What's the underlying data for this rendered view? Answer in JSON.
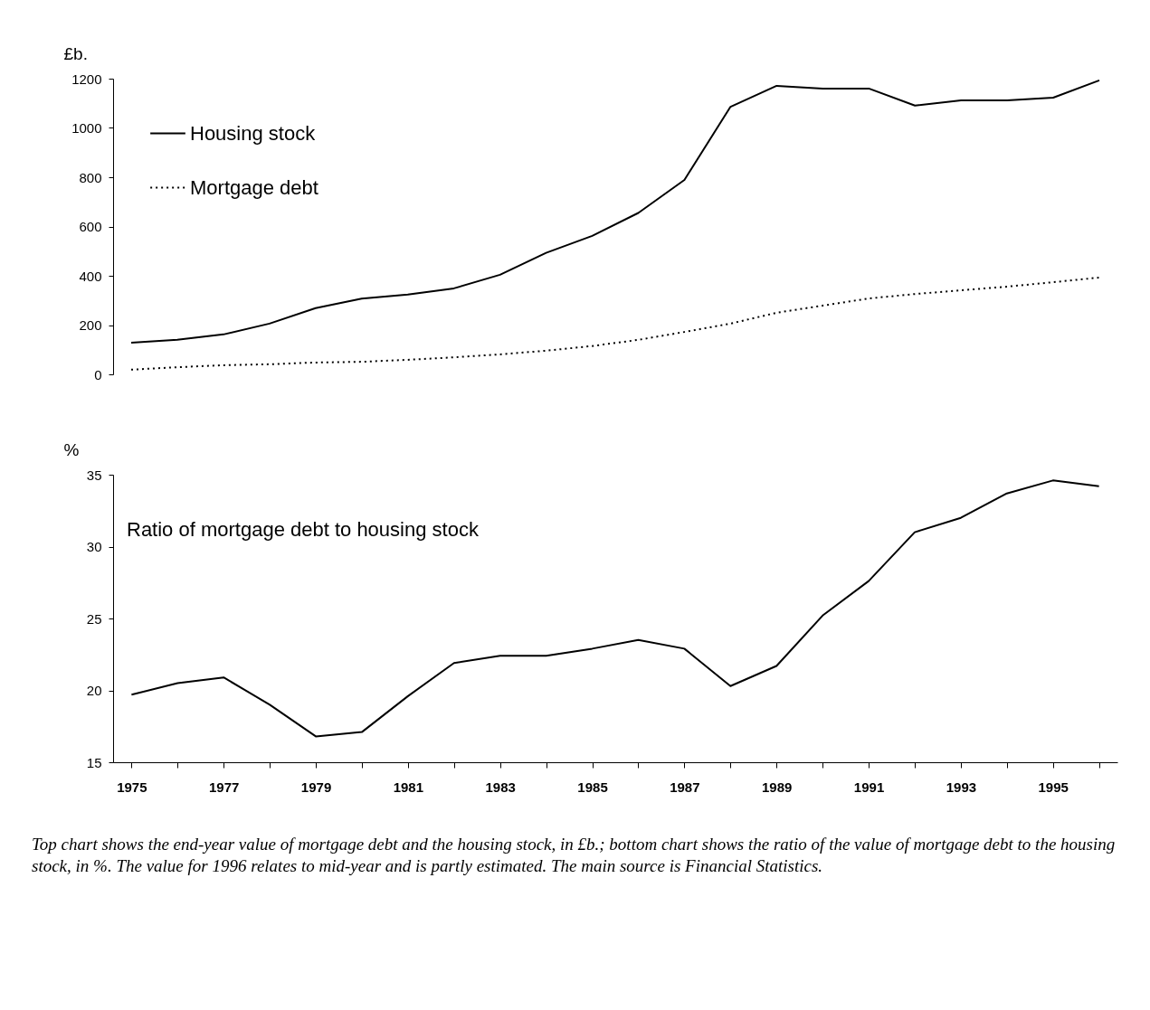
{
  "chart_data": [
    {
      "type": "line",
      "ylabel": "£b.",
      "x": [
        1975,
        1976,
        1977,
        1978,
        1979,
        1980,
        1981,
        1982,
        1983,
        1984,
        1985,
        1986,
        1987,
        1988,
        1989,
        1990,
        1991,
        1992,
        1993,
        1994,
        1995,
        1996
      ],
      "series": [
        {
          "name": "Housing stock",
          "color": "#000000",
          "line_style": "solid",
          "values": [
            128,
            140,
            162,
            206,
            269,
            307,
            324,
            349,
            404,
            493,
            562,
            655,
            789,
            1086,
            1171,
            1160,
            1160,
            1091,
            1112,
            1112,
            1123,
            1193
          ]
        },
        {
          "name": "Mortgage debt",
          "color": "#000000",
          "line_style": "dotted",
          "values": [
            19,
            29,
            37,
            41,
            48,
            51,
            59,
            69,
            81,
            96,
            115,
            140,
            172,
            206,
            250,
            279,
            308,
            326,
            341,
            356,
            374,
            393
          ]
        }
      ],
      "ylim": [
        0,
        1200
      ],
      "yticks": [
        0,
        200,
        400,
        600,
        800,
        1000,
        1200
      ],
      "tick_labels": "y",
      "legend": "top left",
      "grid": false
    },
    {
      "type": "line",
      "title": "Ratio of mortgage debt to housing stock",
      "ylabel": "%",
      "x": [
        1975,
        1976,
        1977,
        1978,
        1979,
        1980,
        1981,
        1982,
        1983,
        1984,
        1985,
        1986,
        1987,
        1988,
        1989,
        1990,
        1991,
        1992,
        1993,
        1994,
        1995,
        1996
      ],
      "series": [
        {
          "color": "#000000",
          "values": [
            19.7,
            20.5,
            20.9,
            19.0,
            16.8,
            17.1,
            19.6,
            21.9,
            22.4,
            22.4,
            22.9,
            23.5,
            22.9,
            20.3,
            21.7,
            25.2,
            27.6,
            31.0,
            32.0,
            33.7,
            34.6,
            34.2
          ]
        }
      ],
      "xlim": [
        1974.6,
        1996.4
      ],
      "ylim": [
        15,
        35
      ],
      "yticks": [
        15,
        20,
        25,
        30,
        35
      ],
      "xticks": [
        1975,
        {
          "value": 1976,
          "label": null
        },
        1977,
        {
          "value": 1978,
          "label": null
        },
        1979,
        {
          "value": 1980,
          "label": null
        },
        1981,
        {
          "value": 1982,
          "label": null
        },
        1983,
        {
          "value": 1984,
          "label": null
        },
        1985,
        {
          "value": 1986,
          "label": null
        },
        1987,
        {
          "value": 1988,
          "label": null
        },
        1989,
        {
          "value": 1990,
          "label": null
        },
        1991,
        {
          "value": 1992,
          "label": null
        },
        1993,
        {
          "value": 1994,
          "label": null
        },
        1995,
        {
          "value": 1996,
          "label": null
        }
      ],
      "grid": false,
      "annotations": [
        "Top chart shows the end-year value of mortgage debt and the housing stock, in £b.; bottom chart shows the ratio of the value of mortgage debt to the housing stock, in %. The value for 1996 relates to mid-year and is partly estimated. The main source is Financial Statistics."
      ]
    }
  ]
}
